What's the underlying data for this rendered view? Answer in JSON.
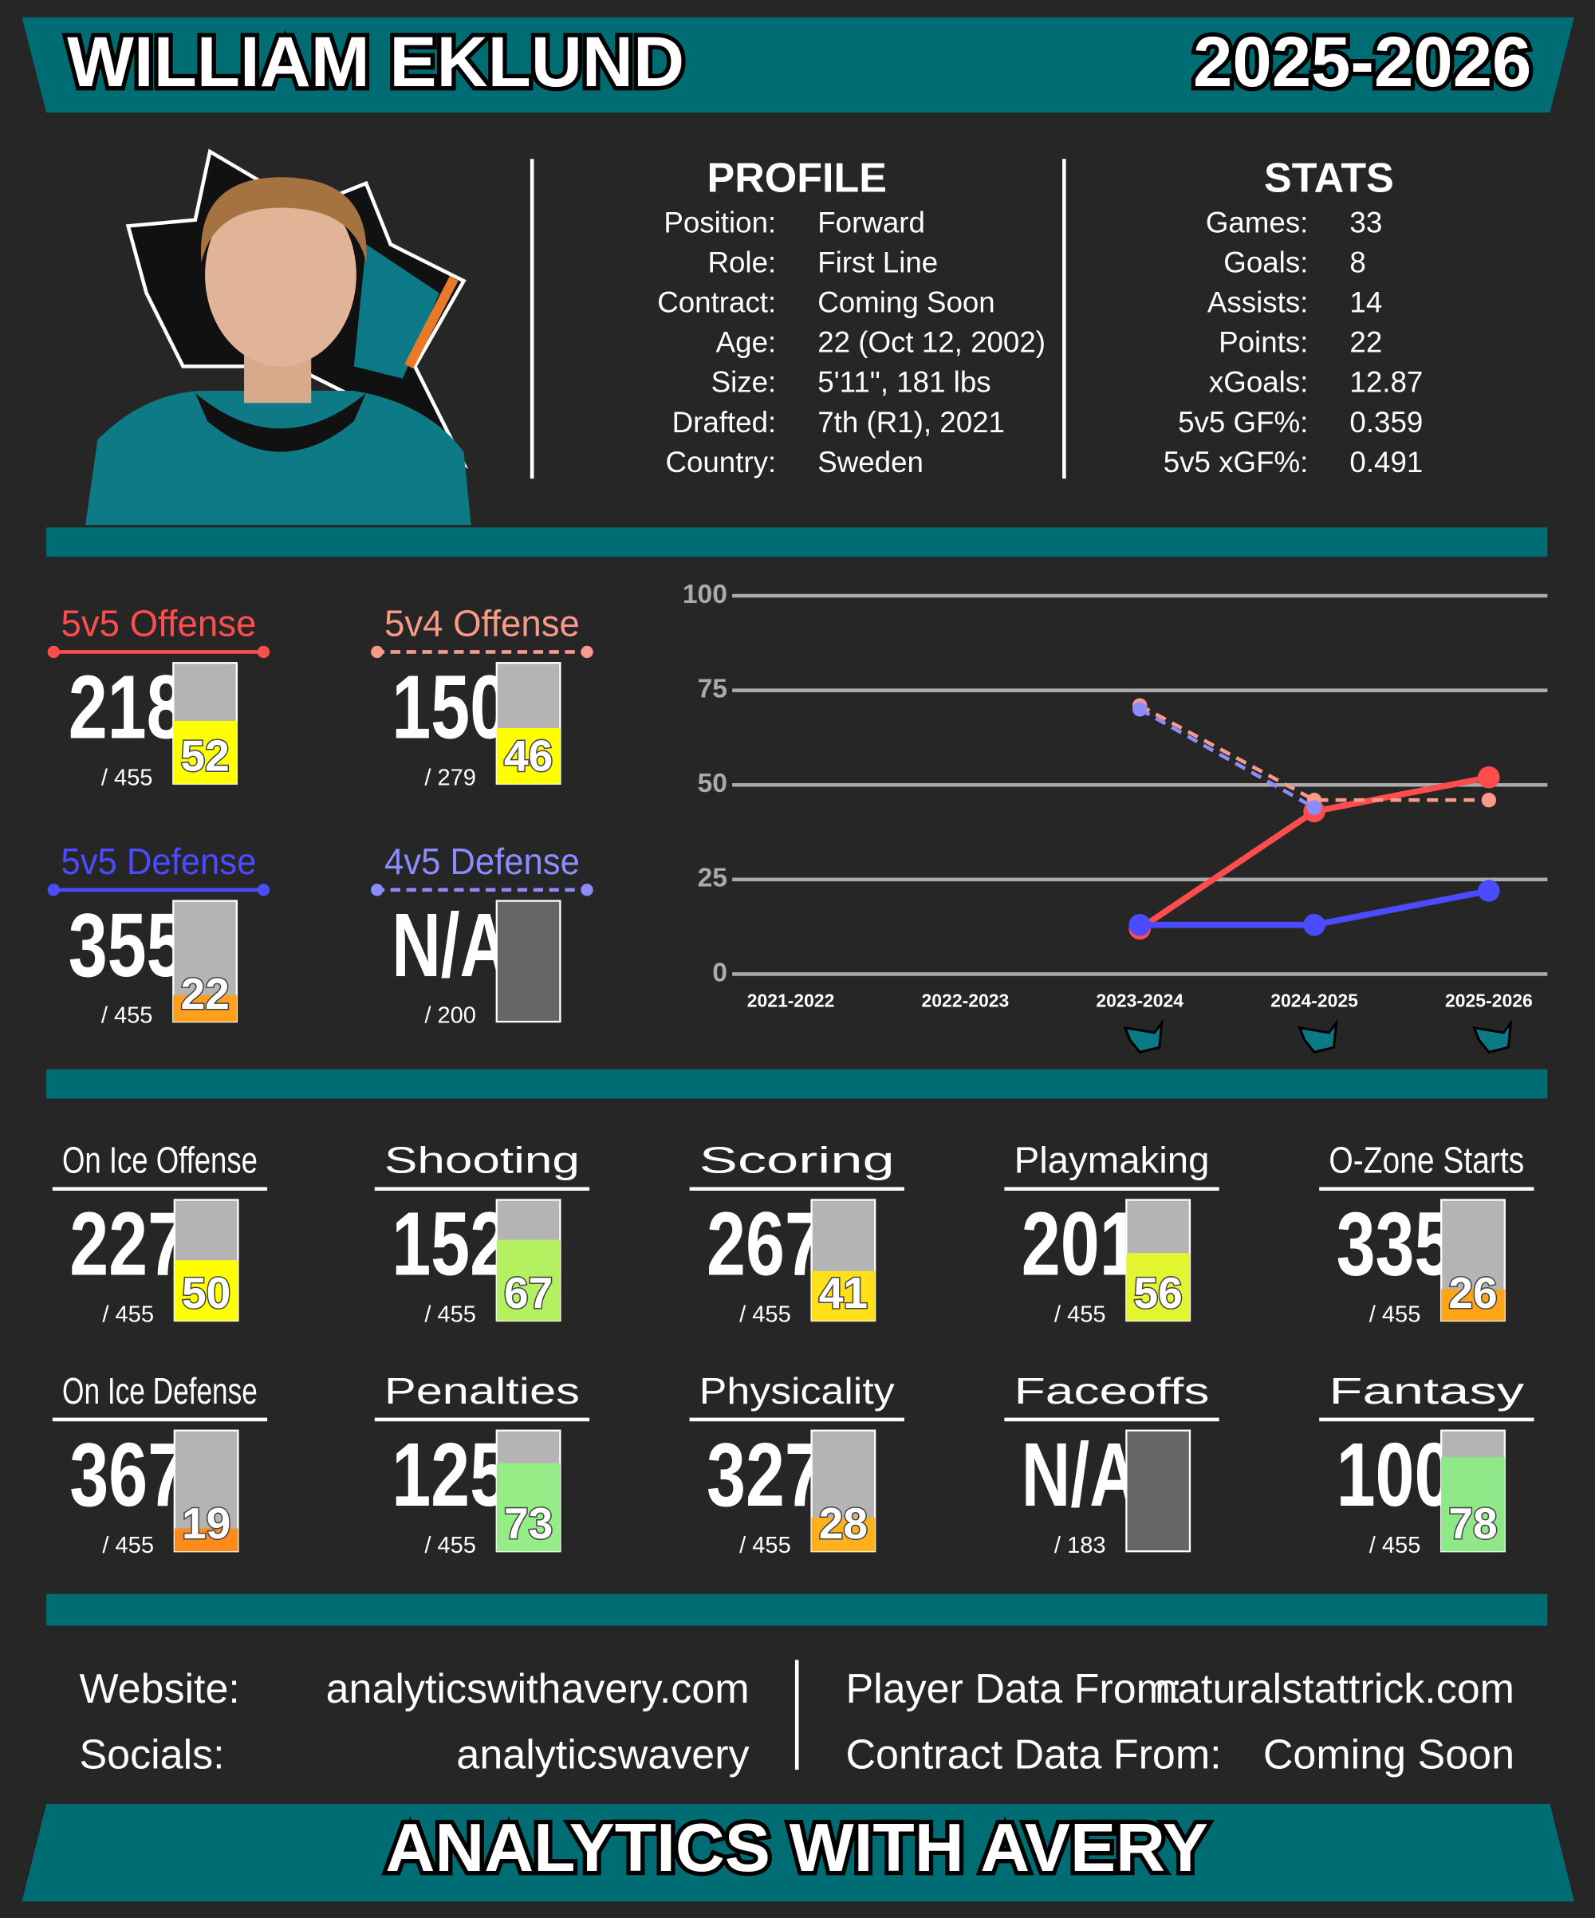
{
  "header": {
    "name": "WILLIAM EKLUND",
    "season": "2025-2026"
  },
  "profile": {
    "title": "PROFILE",
    "rows": [
      [
        "Position:",
        "Forward"
      ],
      [
        "Role:",
        "First Line"
      ],
      [
        "Contract:",
        "Coming Soon"
      ],
      [
        "Age:",
        "22 (Oct 12, 2002)"
      ],
      [
        "Size:",
        "5'11\", 181 lbs"
      ],
      [
        "Drafted:",
        "7th (R1), 2021"
      ],
      [
        "Country:",
        "Sweden"
      ]
    ]
  },
  "stats": {
    "title": "STATS",
    "rows": [
      [
        "Games:",
        "33"
      ],
      [
        "Goals:",
        "8"
      ],
      [
        "Assists:",
        "14"
      ],
      [
        "Points:",
        "22"
      ],
      [
        "xGoals:",
        "12.87"
      ],
      [
        "5v5 GF%:",
        "0.359"
      ],
      [
        "5v5 xGF%:",
        "0.491"
      ]
    ]
  },
  "chart_data": {
    "type": "line",
    "categories": [
      "2021-2022",
      "2022-2023",
      "2023-2024",
      "2024-2025",
      "2025-2026"
    ],
    "ylim": [
      0,
      100
    ],
    "yticks": [
      0,
      25,
      50,
      75,
      100
    ],
    "grid": true,
    "series": [
      {
        "name": "5v5 Offense",
        "color": "#ff4d4d",
        "dashed": false,
        "values": [
          null,
          null,
          12,
          43,
          52
        ],
        "rank": 218,
        "total": "/ 455",
        "percentile": 52,
        "bar_color": "#ffff00"
      },
      {
        "name": "5v4 Offense",
        "color": "#f89a88",
        "dashed": true,
        "values": [
          null,
          null,
          71,
          46,
          46
        ],
        "rank": 150,
        "total": "/ 279",
        "percentile": 46,
        "bar_color": "#ffff00"
      },
      {
        "name": "5v5 Defense",
        "color": "#4b4bff",
        "dashed": false,
        "values": [
          null,
          null,
          13,
          13,
          22
        ],
        "rank": 355,
        "total": "/ 455",
        "percentile": 22,
        "bar_color": "#ff9f1a"
      },
      {
        "name": "4v5 Defense",
        "color": "#8c8cff",
        "dashed": true,
        "values": [
          null,
          null,
          70,
          44,
          null
        ],
        "rank": "N/A",
        "total": "/ 200",
        "percentile": null,
        "bar_color": null
      }
    ]
  },
  "tiles": [
    {
      "label": "On Ice Offense",
      "rank": 227,
      "total": "/ 455",
      "percentile": 50,
      "color": "#ffff00"
    },
    {
      "label": "Shooting",
      "rank": 152,
      "total": "/ 455",
      "percentile": 67,
      "color": "#b4f060"
    },
    {
      "label": "Scoring",
      "rank": 267,
      "total": "/ 455",
      "percentile": 41,
      "color": "#ffe01a"
    },
    {
      "label": "Playmaking",
      "rank": 201,
      "total": "/ 455",
      "percentile": 56,
      "color": "#e2f530"
    },
    {
      "label": "O-Zone Starts",
      "rank": 335,
      "total": "/ 455",
      "percentile": 26,
      "color": "#ffa51a"
    },
    {
      "label": "On Ice Defense",
      "rank": 367,
      "total": "/ 455",
      "percentile": 19,
      "color": "#ff8c1a"
    },
    {
      "label": "Penalties",
      "rank": 125,
      "total": "/ 455",
      "percentile": 73,
      "color": "#96ec86"
    },
    {
      "label": "Physicality",
      "rank": 327,
      "total": "/ 455",
      "percentile": 28,
      "color": "#ffb01a"
    },
    {
      "label": "Faceoffs",
      "rank": "N/A",
      "total": "/ 183",
      "percentile": null,
      "color": null
    },
    {
      "label": "Fantasy",
      "rank": 100,
      "total": "/ 455",
      "percentile": 78,
      "color": "#8ee888"
    }
  ],
  "footer": {
    "rows": [
      [
        "Website:",
        "analyticswithavery.com"
      ],
      [
        "Socials:",
        "analyticswavery"
      ],
      [
        "Player Data From:",
        "naturalstattrick.com"
      ],
      [
        "Contract Data From:",
        "Coming Soon"
      ]
    ],
    "brand": "ANALYTICS WITH AVERY"
  }
}
